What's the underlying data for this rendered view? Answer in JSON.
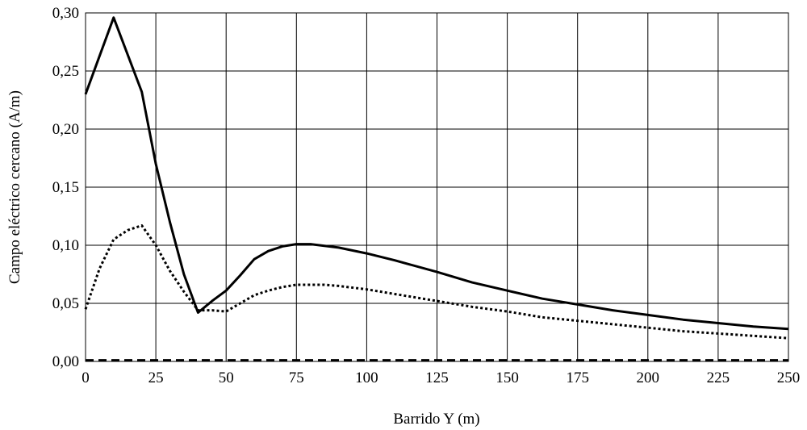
{
  "chart_data": {
    "type": "line",
    "title": "",
    "xlabel": "Barrido Y (m)",
    "ylabel": "Campo eléctrico cercano (A/m)",
    "xlim": [
      0,
      250
    ],
    "ylim": [
      0,
      0.3
    ],
    "xticks": [
      0,
      25,
      50,
      75,
      100,
      125,
      150,
      175,
      200,
      225,
      250
    ],
    "yticks": [
      0,
      0.05,
      0.1,
      0.15,
      0.2,
      0.25,
      0.3
    ],
    "xtick_labels": [
      "0",
      "25",
      "50",
      "75",
      "100",
      "125",
      "150",
      "175",
      "200",
      "225",
      "250"
    ],
    "ytick_labels": [
      "0,00",
      "0,05",
      "0,10",
      "0,15",
      "0,20",
      "0,25",
      "0,30"
    ],
    "grid": true,
    "legend": "none",
    "series": [
      {
        "style": "solid",
        "color": "#000000",
        "x": [
          0,
          10,
          20,
          25,
          30,
          35,
          40,
          45,
          50,
          55,
          60,
          65,
          70,
          75,
          80,
          90,
          100,
          110,
          125,
          137.5,
          150,
          162.5,
          175,
          187.5,
          200,
          212.5,
          225,
          237.5,
          250
        ],
        "y": [
          0.23,
          0.296,
          0.232,
          0.17,
          0.12,
          0.075,
          0.042,
          0.052,
          0.061,
          0.074,
          0.088,
          0.095,
          0.099,
          0.101,
          0.101,
          0.098,
          0.093,
          0.087,
          0.077,
          0.068,
          0.061,
          0.054,
          0.049,
          0.044,
          0.04,
          0.036,
          0.033,
          0.03,
          0.028
        ]
      },
      {
        "style": "dotted",
        "color": "#000000",
        "x": [
          0,
          5,
          10,
          15,
          20,
          25,
          30,
          35,
          40,
          45,
          50,
          55,
          60,
          65,
          70,
          75,
          80,
          85,
          90,
          100,
          112.5,
          125,
          137.5,
          150,
          162.5,
          175,
          187.5,
          200,
          212.5,
          225,
          237.5,
          250
        ],
        "y": [
          0.045,
          0.08,
          0.105,
          0.113,
          0.117,
          0.1,
          0.078,
          0.06,
          0.044,
          0.044,
          0.043,
          0.05,
          0.057,
          0.061,
          0.064,
          0.066,
          0.066,
          0.066,
          0.065,
          0.062,
          0.057,
          0.052,
          0.047,
          0.043,
          0.038,
          0.035,
          0.032,
          0.029,
          0.026,
          0.024,
          0.022,
          0.02
        ]
      },
      {
        "style": "dashed",
        "color": "#000000",
        "x": [
          0,
          250
        ],
        "y": [
          0.001,
          0.001
        ]
      }
    ]
  }
}
